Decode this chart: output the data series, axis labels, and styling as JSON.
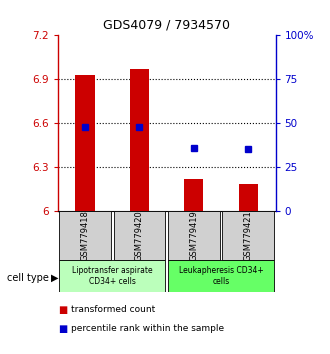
{
  "title": "GDS4079 / 7934570",
  "samples": [
    "GSM779418",
    "GSM779420",
    "GSM779419",
    "GSM779421"
  ],
  "bar_values": [
    6.93,
    6.97,
    6.22,
    6.18
  ],
  "bar_base": 6.0,
  "percentile_values": [
    6.575,
    6.575,
    6.43,
    6.42
  ],
  "bar_color": "#cc0000",
  "dot_color": "#0000cc",
  "ylim": [
    6.0,
    7.2
  ],
  "yticks": [
    6.0,
    6.3,
    6.6,
    6.9,
    7.2
  ],
  "ytick_labels": [
    "6",
    "6.3",
    "6.6",
    "6.9",
    "7.2"
  ],
  "y2ticks": [
    0,
    25,
    50,
    75,
    100
  ],
  "y2tick_labels": [
    "0",
    "25",
    "50",
    "75",
    "100%"
  ],
  "grid_values": [
    6.3,
    6.6,
    6.9
  ],
  "groups": [
    {
      "label": "Lipotransfer aspirate\nCD34+ cells",
      "color": "#bbffbb",
      "span": [
        0,
        1
      ]
    },
    {
      "label": "Leukapheresis CD34+\ncells",
      "color": "#66ff66",
      "span": [
        2,
        3
      ]
    }
  ],
  "bar_width": 0.35,
  "y2label_color": "#0000cc",
  "ylabel_color": "#cc0000",
  "legend_red_label": "transformed count",
  "legend_blue_label": "percentile rank within the sample",
  "cell_type_label": "cell type",
  "sample_box_color": "#d0d0d0",
  "background_color": "#ffffff"
}
